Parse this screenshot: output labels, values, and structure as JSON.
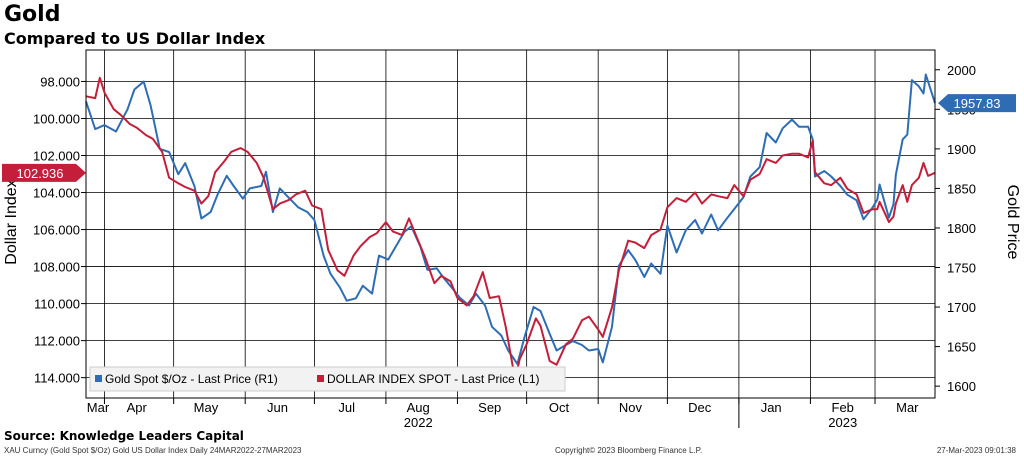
{
  "title": "Gold",
  "subtitle": "Compared to US Dollar Index",
  "source": "Source: Knowledge Leaders Capital",
  "footer": {
    "left": "XAU Curncy (Gold Spot  $/Oz) Gold US Dollar Index  Daily 24MAR2022-27MAR2023",
    "center": "Copyright© 2023 Bloomberg Finance L.P.",
    "right": "27-Mar-2023 09:01:38"
  },
  "chart_data": {
    "type": "line",
    "x_range": [
      "2022-03-24",
      "2023-03-27"
    ],
    "xlabels": [
      {
        "text": "Mar",
        "date": "2022-03-24"
      },
      {
        "text": "Apr",
        "date": "2022-04-15"
      },
      {
        "text": "May",
        "date": "2022-05-15"
      },
      {
        "text": "Jun",
        "date": "2022-06-15"
      },
      {
        "text": "Jul",
        "date": "2022-07-15"
      },
      {
        "text": "Aug",
        "date": "2022-08-15"
      },
      {
        "text": "Sep",
        "date": "2022-09-15"
      },
      {
        "text": "Oct",
        "date": "2022-10-15"
      },
      {
        "text": "Nov",
        "date": "2022-11-15"
      },
      {
        "text": "Dec",
        "date": "2022-12-15"
      },
      {
        "text": "Jan",
        "date": "2023-01-15"
      },
      {
        "text": "Feb",
        "date": "2023-02-15"
      },
      {
        "text": "Mar",
        "date": "2023-03-15"
      }
    ],
    "year_labels": [
      {
        "text": "2022",
        "date": "2022-08-15"
      },
      {
        "text": "2023",
        "date": "2023-02-15"
      }
    ],
    "left_axis": {
      "label": "Dollar Index",
      "inverted": true,
      "range": [
        115.1,
        96.3
      ],
      "ticks": [
        "98.000",
        "100.000",
        "102.000",
        "104.000",
        "106.000",
        "108.000",
        "110.000",
        "112.000",
        "114.000"
      ]
    },
    "right_axis": {
      "label": "Gold Price",
      "range": [
        1585,
        2025
      ],
      "ticks": [
        "2000",
        "1950",
        "1900",
        "1850",
        "1800",
        "1750",
        "1700",
        "1650",
        "1600"
      ]
    },
    "grid": true,
    "legend_position": "bottom-left",
    "series": [
      {
        "name": "Gold Spot $/Oz - Last Price (R1)",
        "axis": "right",
        "color": "#2e6db4",
        "last_value": "1957.83",
        "points": [
          [
            "2022-03-24",
            1960
          ],
          [
            "2022-03-28",
            1925
          ],
          [
            "2022-04-01",
            1930
          ],
          [
            "2022-04-06",
            1922
          ],
          [
            "2022-04-11",
            1950
          ],
          [
            "2022-04-14",
            1975
          ],
          [
            "2022-04-18",
            1985
          ],
          [
            "2022-04-21",
            1955
          ],
          [
            "2022-04-25",
            1900
          ],
          [
            "2022-04-29",
            1896
          ],
          [
            "2022-05-03",
            1868
          ],
          [
            "2022-05-06",
            1882
          ],
          [
            "2022-05-10",
            1853
          ],
          [
            "2022-05-13",
            1812
          ],
          [
            "2022-05-17",
            1820
          ],
          [
            "2022-05-20",
            1842
          ],
          [
            "2022-05-24",
            1866
          ],
          [
            "2022-05-27",
            1853
          ],
          [
            "2022-05-31",
            1837
          ],
          [
            "2022-06-03",
            1850
          ],
          [
            "2022-06-08",
            1853
          ],
          [
            "2022-06-10",
            1871
          ],
          [
            "2022-06-13",
            1820
          ],
          [
            "2022-06-16",
            1850
          ],
          [
            "2022-06-20",
            1838
          ],
          [
            "2022-06-24",
            1826
          ],
          [
            "2022-06-28",
            1820
          ],
          [
            "2022-07-01",
            1810
          ],
          [
            "2022-07-05",
            1765
          ],
          [
            "2022-07-08",
            1742
          ],
          [
            "2022-07-12",
            1725
          ],
          [
            "2022-07-15",
            1708
          ],
          [
            "2022-07-19",
            1711
          ],
          [
            "2022-07-22",
            1727
          ],
          [
            "2022-07-26",
            1717
          ],
          [
            "2022-07-29",
            1765
          ],
          [
            "2022-08-02",
            1760
          ],
          [
            "2022-08-05",
            1775
          ],
          [
            "2022-08-09",
            1795
          ],
          [
            "2022-08-12",
            1802
          ],
          [
            "2022-08-16",
            1776
          ],
          [
            "2022-08-19",
            1747
          ],
          [
            "2022-08-23",
            1749
          ],
          [
            "2022-08-26",
            1737
          ],
          [
            "2022-08-30",
            1723
          ],
          [
            "2022-09-02",
            1712
          ],
          [
            "2022-09-06",
            1702
          ],
          [
            "2022-09-09",
            1717
          ],
          [
            "2022-09-13",
            1702
          ],
          [
            "2022-09-16",
            1675
          ],
          [
            "2022-09-20",
            1664
          ],
          [
            "2022-09-23",
            1645
          ],
          [
            "2022-09-27",
            1628
          ],
          [
            "2022-09-30",
            1661
          ],
          [
            "2022-10-04",
            1700
          ],
          [
            "2022-10-07",
            1695
          ],
          [
            "2022-10-11",
            1666
          ],
          [
            "2022-10-14",
            1645
          ],
          [
            "2022-10-18",
            1652
          ],
          [
            "2022-10-21",
            1657
          ],
          [
            "2022-10-25",
            1652
          ],
          [
            "2022-10-28",
            1645
          ],
          [
            "2022-11-01",
            1647
          ],
          [
            "2022-11-03",
            1630
          ],
          [
            "2022-11-07",
            1675
          ],
          [
            "2022-11-10",
            1752
          ],
          [
            "2022-11-14",
            1772
          ],
          [
            "2022-11-17",
            1760
          ],
          [
            "2022-11-21",
            1738
          ],
          [
            "2022-11-24",
            1755
          ],
          [
            "2022-11-28",
            1742
          ],
          [
            "2022-12-01",
            1803
          ],
          [
            "2022-12-05",
            1769
          ],
          [
            "2022-12-09",
            1797
          ],
          [
            "2022-12-13",
            1810
          ],
          [
            "2022-12-16",
            1793
          ],
          [
            "2022-12-20",
            1817
          ],
          [
            "2022-12-23",
            1797
          ],
          [
            "2022-12-27",
            1813
          ],
          [
            "2022-12-30",
            1824
          ],
          [
            "2023-01-03",
            1839
          ],
          [
            "2023-01-06",
            1865
          ],
          [
            "2023-01-10",
            1877
          ],
          [
            "2023-01-13",
            1920
          ],
          [
            "2023-01-17",
            1908
          ],
          [
            "2023-01-20",
            1926
          ],
          [
            "2023-01-24",
            1937
          ],
          [
            "2023-01-27",
            1928
          ],
          [
            "2023-01-31",
            1928
          ],
          [
            "2023-02-02",
            1912
          ],
          [
            "2023-02-03",
            1865
          ],
          [
            "2023-02-07",
            1872
          ],
          [
            "2023-02-10",
            1865
          ],
          [
            "2023-02-14",
            1853
          ],
          [
            "2023-02-17",
            1842
          ],
          [
            "2023-02-21",
            1835
          ],
          [
            "2023-02-24",
            1811
          ],
          [
            "2023-02-28",
            1826
          ],
          [
            "2023-03-02",
            1836
          ],
          [
            "2023-03-03",
            1855
          ],
          [
            "2023-03-07",
            1813
          ],
          [
            "2023-03-09",
            1830
          ],
          [
            "2023-03-10",
            1867
          ],
          [
            "2023-03-13",
            1912
          ],
          [
            "2023-03-15",
            1918
          ],
          [
            "2023-03-17",
            1987
          ],
          [
            "2023-03-20",
            1979
          ],
          [
            "2023-03-22",
            1970
          ],
          [
            "2023-03-23",
            1994
          ],
          [
            "2023-03-27",
            1957.83
          ]
        ]
      },
      {
        "name": "DOLLAR INDEX SPOT - Last Price (L1)",
        "axis": "left",
        "color": "#c41e3a",
        "last_value": "102.936",
        "points": [
          [
            "2022-03-24",
            98.8
          ],
          [
            "2022-03-28",
            98.9
          ],
          [
            "2022-03-30",
            97.8
          ],
          [
            "2022-04-01",
            98.6
          ],
          [
            "2022-04-05",
            99.5
          ],
          [
            "2022-04-08",
            99.8
          ],
          [
            "2022-04-12",
            100.3
          ],
          [
            "2022-04-15",
            100.5
          ],
          [
            "2022-04-19",
            100.9
          ],
          [
            "2022-04-22",
            101.1
          ],
          [
            "2022-04-26",
            101.8
          ],
          [
            "2022-04-29",
            103.2
          ],
          [
            "2022-05-03",
            103.5
          ],
          [
            "2022-05-06",
            103.7
          ],
          [
            "2022-05-10",
            103.9
          ],
          [
            "2022-05-13",
            104.6
          ],
          [
            "2022-05-16",
            104.2
          ],
          [
            "2022-05-19",
            102.9
          ],
          [
            "2022-05-23",
            102.3
          ],
          [
            "2022-05-26",
            101.8
          ],
          [
            "2022-05-30",
            101.6
          ],
          [
            "2022-06-02",
            101.8
          ],
          [
            "2022-06-06",
            102.4
          ],
          [
            "2022-06-09",
            103.2
          ],
          [
            "2022-06-13",
            104.9
          ],
          [
            "2022-06-16",
            104.6
          ],
          [
            "2022-06-20",
            104.4
          ],
          [
            "2022-06-23",
            104.1
          ],
          [
            "2022-06-27",
            103.9
          ],
          [
            "2022-06-30",
            104.7
          ],
          [
            "2022-07-04",
            104.9
          ],
          [
            "2022-07-07",
            107.1
          ],
          [
            "2022-07-11",
            108.2
          ],
          [
            "2022-07-14",
            108.5
          ],
          [
            "2022-07-18",
            107.4
          ],
          [
            "2022-07-21",
            106.9
          ],
          [
            "2022-07-25",
            106.4
          ],
          [
            "2022-07-28",
            106.2
          ],
          [
            "2022-08-01",
            105.6
          ],
          [
            "2022-08-04",
            106.1
          ],
          [
            "2022-08-08",
            106.3
          ],
          [
            "2022-08-11",
            105.4
          ],
          [
            "2022-08-15",
            106.6
          ],
          [
            "2022-08-18",
            107.5
          ],
          [
            "2022-08-22",
            108.9
          ],
          [
            "2022-08-25",
            108.5
          ],
          [
            "2022-08-29",
            108.8
          ],
          [
            "2022-09-01",
            109.7
          ],
          [
            "2022-09-05",
            110.1
          ],
          [
            "2022-09-08",
            109.6
          ],
          [
            "2022-09-12",
            108.3
          ],
          [
            "2022-09-15",
            109.7
          ],
          [
            "2022-09-19",
            109.6
          ],
          [
            "2022-09-22",
            111.3
          ],
          [
            "2022-09-26",
            114.1
          ],
          [
            "2022-09-28",
            113.0
          ],
          [
            "2022-10-01",
            112.2
          ],
          [
            "2022-10-05",
            110.8
          ],
          [
            "2022-10-07",
            111.2
          ],
          [
            "2022-10-11",
            113.1
          ],
          [
            "2022-10-14",
            113.3
          ],
          [
            "2022-10-18",
            112.2
          ],
          [
            "2022-10-21",
            111.9
          ],
          [
            "2022-10-25",
            110.9
          ],
          [
            "2022-10-28",
            110.7
          ],
          [
            "2022-11-01",
            111.4
          ],
          [
            "2022-11-03",
            111.8
          ],
          [
            "2022-11-07",
            110.2
          ],
          [
            "2022-11-10",
            108.2
          ],
          [
            "2022-11-14",
            106.6
          ],
          [
            "2022-11-17",
            106.7
          ],
          [
            "2022-11-21",
            107.0
          ],
          [
            "2022-11-24",
            106.3
          ],
          [
            "2022-11-28",
            106.0
          ],
          [
            "2022-12-01",
            104.8
          ],
          [
            "2022-12-05",
            104.3
          ],
          [
            "2022-12-09",
            104.5
          ],
          [
            "2022-12-13",
            104.0
          ],
          [
            "2022-12-16",
            104.6
          ],
          [
            "2022-12-20",
            104.1
          ],
          [
            "2022-12-23",
            104.2
          ],
          [
            "2022-12-27",
            104.3
          ],
          [
            "2022-12-30",
            103.6
          ],
          [
            "2023-01-03",
            104.2
          ],
          [
            "2023-01-06",
            103.3
          ],
          [
            "2023-01-10",
            103.0
          ],
          [
            "2023-01-13",
            102.2
          ],
          [
            "2023-01-17",
            102.4
          ],
          [
            "2023-01-20",
            102.0
          ],
          [
            "2023-01-24",
            101.9
          ],
          [
            "2023-01-27",
            101.9
          ],
          [
            "2023-01-31",
            102.1
          ],
          [
            "2023-02-02",
            101.2
          ],
          [
            "2023-02-03",
            102.9
          ],
          [
            "2023-02-07",
            103.5
          ],
          [
            "2023-02-10",
            103.6
          ],
          [
            "2023-02-14",
            103.2
          ],
          [
            "2023-02-17",
            103.8
          ],
          [
            "2023-02-21",
            104.1
          ],
          [
            "2023-02-24",
            105.1
          ],
          [
            "2023-02-28",
            104.9
          ],
          [
            "2023-03-02",
            104.9
          ],
          [
            "2023-03-03",
            104.5
          ],
          [
            "2023-03-07",
            105.6
          ],
          [
            "2023-03-09",
            105.3
          ],
          [
            "2023-03-10",
            104.6
          ],
          [
            "2023-03-13",
            103.6
          ],
          [
            "2023-03-15",
            104.5
          ],
          [
            "2023-03-17",
            103.6
          ],
          [
            "2023-03-20",
            103.2
          ],
          [
            "2023-03-22",
            102.4
          ],
          [
            "2023-03-24",
            103.1
          ],
          [
            "2023-03-27",
            102.936
          ]
        ]
      }
    ]
  }
}
